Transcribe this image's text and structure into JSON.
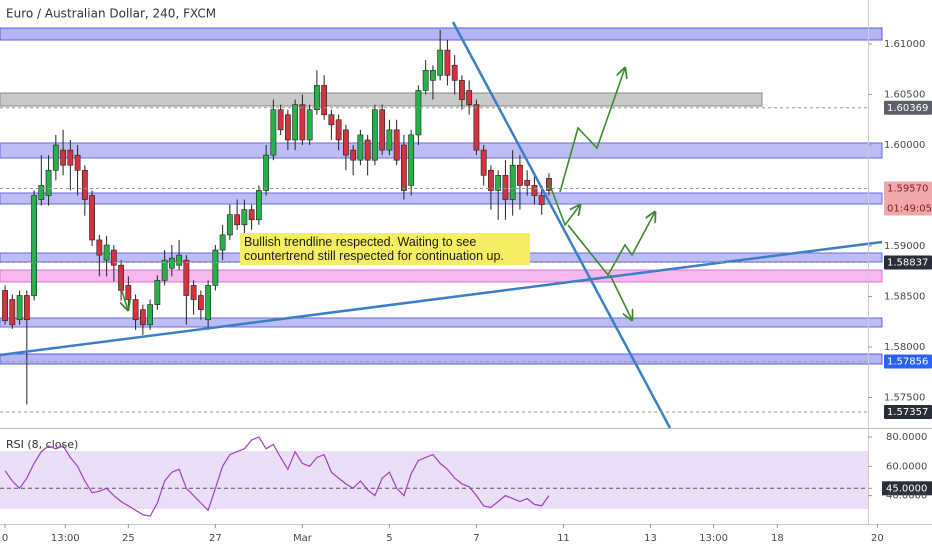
{
  "chart_data": [
    {
      "type": "candlestick",
      "title": "Euro / Australian Dollar, 240, FXCM",
      "up_color": "#26b14a",
      "down_color": "#d3323f",
      "open": [
        1.5856,
        1.5847,
        1.5827,
        1.5851,
        1.5851,
        1.5946,
        1.595,
        1.5975,
        1.5995,
        1.5995,
        1.599,
        1.5975,
        1.595,
        1.5906,
        1.5886,
        1.5896,
        1.5881,
        1.5861,
        1.5847,
        1.5837,
        1.5822,
        1.5842,
        1.5866,
        1.5878,
        1.5881,
        1.5886,
        1.5861,
        1.5851,
        1.5827,
        1.5861,
        1.5896,
        1.5911,
        1.5931,
        1.5921,
        1.5936,
        1.5926,
        1.5955,
        1.599,
        1.6035,
        1.603,
        1.6005,
        1.604,
        1.6005,
        1.6035,
        1.6059,
        1.603,
        1.6025,
        1.6015,
        1.5995,
        1.5985,
        1.6005,
        1.5985,
        1.6035,
        1.5995,
        1.6015,
        1.6,
        1.596,
        1.601,
        1.6054,
        1.6064,
        1.6069,
        1.6094,
        1.6079,
        1.6064,
        1.6054,
        1.604,
        1.5995,
        1.5975,
        1.5955,
        1.597,
        1.5946,
        1.598,
        1.5965,
        1.596,
        1.595,
        1.5967
      ],
      "high": [
        1.5861,
        1.5852,
        1.5856,
        1.5856,
        1.5955,
        1.599,
        1.599,
        1.601,
        1.6015,
        1.6005,
        1.6,
        1.598,
        1.5955,
        1.5911,
        1.591,
        1.5901,
        1.5886,
        1.587,
        1.5852,
        1.5842,
        1.5847,
        1.5871,
        1.5896,
        1.5901,
        1.5906,
        1.5891,
        1.5866,
        1.5856,
        1.5866,
        1.5901,
        1.5921,
        1.5941,
        1.5946,
        1.5946,
        1.5941,
        1.596,
        1.6,
        1.6045,
        1.604,
        1.6035,
        1.6045,
        1.605,
        1.604,
        1.6074,
        1.6069,
        1.6035,
        1.603,
        1.602,
        1.6,
        1.6015,
        1.601,
        1.604,
        1.604,
        1.6025,
        1.6025,
        1.601,
        1.6015,
        1.6059,
        1.6084,
        1.6079,
        1.6114,
        1.6104,
        1.6089,
        1.6069,
        1.6064,
        1.6045,
        1.6,
        1.598,
        1.5975,
        1.5985,
        1.5995,
        1.599,
        1.5975,
        1.597,
        1.596,
        1.5972
      ],
      "low": [
        1.5822,
        1.5818,
        1.5822,
        1.5743,
        1.5846,
        1.594,
        1.594,
        1.5965,
        1.597,
        1.5955,
        1.595,
        1.593,
        1.59,
        1.587,
        1.587,
        1.5865,
        1.5846,
        1.584,
        1.5817,
        1.5812,
        1.5817,
        1.5837,
        1.5861,
        1.587,
        1.5876,
        1.5822,
        1.5832,
        1.5827,
        1.5817,
        1.5856,
        1.5886,
        1.5906,
        1.5916,
        1.5911,
        1.5916,
        1.5921,
        1.595,
        1.5985,
        1.601,
        1.5995,
        1.5995,
        1.6,
        1.6,
        1.603,
        1.6025,
        1.6005,
        1.5995,
        1.5975,
        1.597,
        1.598,
        1.597,
        1.598,
        1.599,
        1.599,
        1.598,
        1.5946,
        1.595,
        1.6,
        1.605,
        1.6045,
        1.6064,
        1.6059,
        1.605,
        1.6035,
        1.603,
        1.599,
        1.596,
        1.5936,
        1.5926,
        1.5926,
        1.593,
        1.5936,
        1.595,
        1.5941,
        1.5931,
        1.595
      ],
      "close": [
        1.5826,
        1.5822,
        1.5851,
        1.5827,
        1.595,
        1.596,
        1.5975,
        1.6,
        1.598,
        1.598,
        1.5975,
        1.5946,
        1.5906,
        1.5891,
        1.5901,
        1.5881,
        1.5856,
        1.5847,
        1.5827,
        1.5822,
        1.5842,
        1.5866,
        1.5886,
        1.5888,
        1.5891,
        1.5851,
        1.5847,
        1.5837,
        1.5861,
        1.5896,
        1.5911,
        1.5931,
        1.5921,
        1.5936,
        1.5926,
        1.5955,
        1.599,
        1.6035,
        1.6015,
        1.6005,
        1.604,
        1.6005,
        1.6035,
        1.6059,
        1.603,
        1.602,
        1.6005,
        1.599,
        1.5985,
        1.601,
        1.5985,
        1.6035,
        1.5995,
        1.6015,
        1.5985,
        1.5955,
        1.601,
        1.6054,
        1.6074,
        1.6074,
        1.6094,
        1.6069,
        1.6064,
        1.6045,
        1.604,
        1.5995,
        1.597,
        1.5955,
        1.597,
        1.5946,
        1.598,
        1.596,
        1.596,
        1.595,
        1.5941,
        1.5955
      ],
      "xlim": [
        -0.7,
        119
      ],
      "xticks": [
        0,
        {
          "value": 8.3,
          "label": "13:00"
        },
        {
          "value": 17,
          "label": "25"
        },
        {
          "value": 29,
          "label": "27"
        },
        {
          "value": 41,
          "label": "Mar"
        },
        {
          "value": 53,
          "label": "5"
        },
        {
          "value": 65,
          "label": "7"
        },
        {
          "value": 77,
          "label": "11"
        },
        {
          "value": 89,
          "label": "13"
        },
        {
          "value": 97.7,
          "label": "13:00"
        },
        {
          "value": 106.5,
          "label": "18"
        },
        {
          "value": 120.3,
          "label": "20"
        }
      ],
      "ylim": [
        1.57198,
        1.61436
      ],
      "yticks": [
        {
          "value": 1.61,
          "label": "1.61000"
        },
        {
          "value": 1.605,
          "label": "1.60500"
        },
        {
          "value": 1.6,
          "label": "1.60000"
        },
        {
          "value": 1.59,
          "label": "1.59000"
        },
        {
          "value": 1.585,
          "label": "1.58500"
        },
        {
          "value": 1.58,
          "label": "1.58000"
        },
        {
          "value": 1.575,
          "label": "1.57500"
        }
      ],
      "price_labels": [
        {
          "value": 1.60369,
          "label": "1.60369",
          "color": "#5d606b"
        },
        {
          "value": 1.5957,
          "label": "1.59570",
          "color": "#f0a8ad"
        },
        {
          "value": 1.58837,
          "label": "1.58837",
          "color": "#2a2e39"
        },
        {
          "value": 1.57856,
          "label": "1.57856",
          "color": "#2962ff"
        },
        {
          "value": 1.57357,
          "label": "1.57357",
          "color": "#2a2e39"
        }
      ],
      "countdown": "01:49:05",
      "annotation": "Bullish trendline respected. Waiting to see countertrend still respected for continuation up."
    },
    {
      "type": "line",
      "title": "RSI (8, close)",
      "color": "#a03fc0",
      "values": [
        57,
        50,
        45,
        52,
        62,
        70,
        74,
        72,
        74,
        66,
        60,
        50,
        42,
        43,
        45,
        40,
        36,
        33,
        30,
        27,
        26,
        35,
        50,
        56,
        58,
        45,
        40,
        35,
        30,
        45,
        60,
        68,
        70,
        72,
        78,
        80,
        72,
        75,
        66,
        58,
        70,
        62,
        60,
        66,
        68,
        56,
        52,
        48,
        45,
        50,
        44,
        40,
        52,
        56,
        45,
        40,
        55,
        64,
        66,
        68,
        62,
        58,
        52,
        48,
        46,
        40,
        33,
        32,
        36,
        40,
        38,
        36,
        38,
        34,
        33,
        40
      ],
      "ylim": [
        22,
        84.8
      ],
      "yticks": [
        {
          "value": 80,
          "label": "80.0000"
        },
        {
          "value": 60,
          "label": "60.0000"
        },
        {
          "value": 45,
          "label": "45.0000"
        },
        {
          "value": 40,
          "label": "40.0000"
        }
      ],
      "highlight_tick": 45
    }
  ]
}
